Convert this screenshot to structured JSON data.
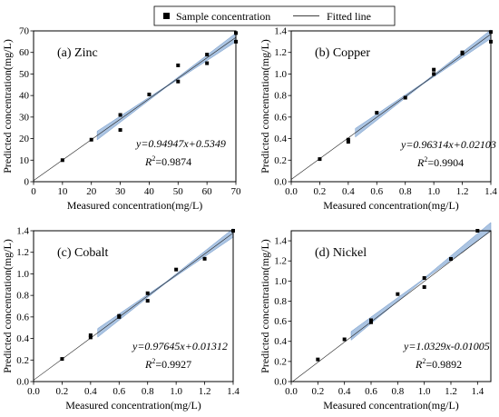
{
  "legend": {
    "sample_label": "Sample concentration",
    "fitted_label": "Fitted line"
  },
  "chart_data": [
    {
      "type": "scatter",
      "title": "(a) Zinc",
      "xlabel": "Measured concentration(mg/L)",
      "ylabel": "Predicted concentration(mg/L)",
      "xlim": [
        0,
        70
      ],
      "ylim": [
        0,
        70
      ],
      "xticks": [
        0,
        10,
        20,
        30,
        40,
        50,
        60,
        70
      ],
      "xtick_labels": [
        "0",
        "10",
        "20",
        "30",
        "40",
        "50",
        "60",
        "70"
      ],
      "yticks": [
        0,
        10,
        20,
        30,
        40,
        50,
        60,
        70
      ],
      "ytick_labels": [
        "0",
        "10",
        "20",
        "30",
        "40",
        "50",
        "60",
        "70"
      ],
      "points": [
        [
          10,
          10
        ],
        [
          20,
          19.5
        ],
        [
          30,
          31
        ],
        [
          30,
          24
        ],
        [
          40,
          40.5
        ],
        [
          50,
          54
        ],
        [
          50,
          46.5
        ],
        [
          60,
          59
        ],
        [
          60,
          55
        ],
        [
          70,
          65
        ],
        [
          70,
          69
        ]
      ],
      "fit": {
        "slope": 0.94947,
        "intercept": 0.5349
      },
      "band_x": [
        22,
        70
      ],
      "equation": "y=0.94947x+0.5349",
      "r2_label": "R",
      "r2_exp": "2",
      "r2_value": "=0.9874"
    },
    {
      "type": "scatter",
      "title": "(b) Copper",
      "xlabel": "Measured concentration(mg/L)",
      "ylabel": "Predicted concentration(mg/L)",
      "xlim": [
        0,
        1.4
      ],
      "ylim": [
        0,
        1.4
      ],
      "xticks": [
        0,
        0.2,
        0.4,
        0.6,
        0.8,
        1.0,
        1.2,
        1.4
      ],
      "xtick_labels": [
        "0.0",
        "0.2",
        "0.4",
        "0.6",
        "0.8",
        "1.0",
        "1.2",
        "1.4"
      ],
      "yticks": [
        0,
        0.2,
        0.4,
        0.6,
        0.8,
        1.0,
        1.2,
        1.4
      ],
      "ytick_labels": [
        "0.0",
        "0.2",
        "0.4",
        "0.6",
        "0.8",
        "1.0",
        "1.2",
        "1.4"
      ],
      "points": [
        [
          0.2,
          0.21
        ],
        [
          0.4,
          0.39
        ],
        [
          0.4,
          0.37
        ],
        [
          0.6,
          0.64
        ],
        [
          0.8,
          0.78
        ],
        [
          1.0,
          1.04
        ],
        [
          1.0,
          1.0
        ],
        [
          1.2,
          1.2
        ],
        [
          1.2,
          1.19
        ],
        [
          1.4,
          1.3
        ],
        [
          1.4,
          1.39
        ]
      ],
      "fit": {
        "slope": 0.96314,
        "intercept": 0.02103
      },
      "band_x": [
        0.45,
        1.4
      ],
      "equation": "y=0.96314x+0.02103",
      "r2_label": "R",
      "r2_exp": "2",
      "r2_value": "=0.9904"
    },
    {
      "type": "scatter",
      "title": "(c) Cobalt",
      "xlabel": "Measured concentration(mg/L)",
      "ylabel": "Predicted concentration(mg/L)",
      "xlim": [
        0,
        1.4
      ],
      "ylim": [
        0,
        1.4
      ],
      "xticks": [
        0,
        0.2,
        0.4,
        0.6,
        0.8,
        1.0,
        1.2,
        1.4
      ],
      "xtick_labels": [
        "0.0",
        "0.2",
        "0.4",
        "0.6",
        "0.8",
        "1.0",
        "1.2",
        "1.4"
      ],
      "yticks": [
        0,
        0.2,
        0.4,
        0.6,
        0.8,
        1.0,
        1.2,
        1.4
      ],
      "ytick_labels": [
        "0.0",
        "0.2",
        "0.4",
        "0.6",
        "0.8",
        "1.0",
        "1.2",
        "1.4"
      ],
      "points": [
        [
          0.2,
          0.21
        ],
        [
          0.4,
          0.43
        ],
        [
          0.4,
          0.41
        ],
        [
          0.6,
          0.61
        ],
        [
          0.6,
          0.6
        ],
        [
          0.8,
          0.82
        ],
        [
          0.8,
          0.75
        ],
        [
          1.0,
          1.04
        ],
        [
          1.2,
          1.14
        ],
        [
          1.4,
          1.4
        ]
      ],
      "fit": {
        "slope": 0.97645,
        "intercept": 0.01312
      },
      "band_x": [
        0.45,
        1.4
      ],
      "equation": "y=0.97645x+0.01312",
      "r2_label": "R",
      "r2_exp": "2",
      "r2_value": "=0.9927"
    },
    {
      "type": "scatter",
      "title": "(d) Nickel",
      "xlabel": "Measured concentration(mg/L)",
      "ylabel": "Predicted concentration(mg/L)",
      "xlim": [
        0,
        1.5
      ],
      "ylim": [
        0,
        1.5
      ],
      "xticks": [
        0,
        0.2,
        0.4,
        0.6,
        0.8,
        1.0,
        1.2,
        1.4
      ],
      "xtick_labels": [
        "0.0",
        "0.2",
        "0.4",
        "0.6",
        "0.8",
        "1.0",
        "1.2",
        "1.4"
      ],
      "yticks": [
        0,
        0.2,
        0.4,
        0.6,
        0.8,
        1.0,
        1.2,
        1.4
      ],
      "ytick_labels": [
        "0.0",
        "0.2",
        "0.4",
        "0.6",
        "0.8",
        "1.0",
        "1.2",
        "1.4"
      ],
      "points": [
        [
          0.2,
          0.22
        ],
        [
          0.4,
          0.42
        ],
        [
          0.6,
          0.61
        ],
        [
          0.6,
          0.59
        ],
        [
          0.8,
          0.87
        ],
        [
          1.0,
          1.03
        ],
        [
          1.0,
          0.94
        ],
        [
          1.2,
          1.22
        ],
        [
          1.4,
          1.5
        ]
      ],
      "fit": {
        "slope": 1.0329,
        "intercept": -0.01005
      },
      "band_x": [
        0.45,
        1.5
      ],
      "equation": "y=1.0329x-0.01005",
      "r2_label": "R",
      "r2_exp": "2",
      "r2_value": "=0.9892"
    }
  ]
}
